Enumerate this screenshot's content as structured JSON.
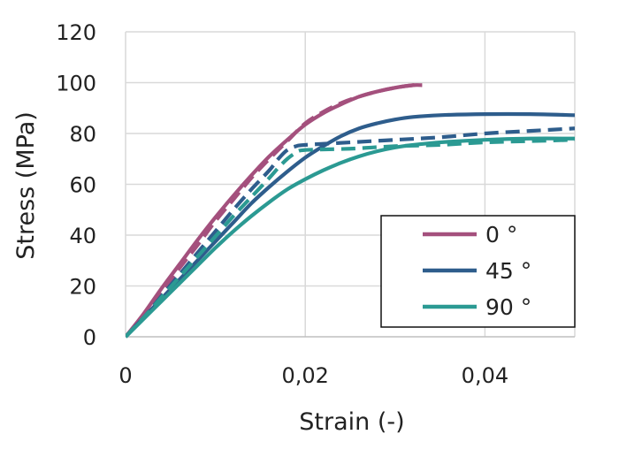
{
  "chart_data": {
    "type": "line",
    "title": "",
    "xlabel": "Strain (-)",
    "ylabel": "Stress (MPa)",
    "xlim": [
      0,
      0.05
    ],
    "ylim": [
      0,
      120
    ],
    "x_ticks": [
      0,
      0.02,
      0.04
    ],
    "x_tick_labels": [
      "0",
      "0,02",
      "0,04"
    ],
    "y_ticks": [
      0,
      20,
      40,
      60,
      80,
      100,
      120
    ],
    "y_tick_labels": [
      "0",
      "20",
      "40",
      "60",
      "80",
      "100",
      "120"
    ],
    "grid": true,
    "legend_position": "lower-right",
    "legend": [
      "0 °",
      "45 °",
      "90 °"
    ],
    "series": [
      {
        "name": "0 °",
        "line_style": "solid",
        "color": "#A4507D",
        "points": [
          [
            0,
            0
          ],
          [
            0.002,
            9
          ],
          [
            0.004,
            19
          ],
          [
            0.006,
            28.5
          ],
          [
            0.008,
            38
          ],
          [
            0.01,
            47
          ],
          [
            0.012,
            55.5
          ],
          [
            0.014,
            63.5
          ],
          [
            0.016,
            71
          ],
          [
            0.018,
            77.5
          ],
          [
            0.02,
            83.5
          ],
          [
            0.022,
            88
          ],
          [
            0.024,
            91.5
          ],
          [
            0.026,
            94.5
          ],
          [
            0.028,
            96.5
          ],
          [
            0.03,
            98
          ],
          [
            0.032,
            99
          ],
          [
            0.033,
            99
          ]
        ]
      },
      {
        "name": "0 °",
        "line_style": "dashed",
        "color": "#A4507D",
        "points": [
          [
            0,
            0
          ],
          [
            0.002,
            8.5
          ],
          [
            0.004,
            17.5
          ],
          [
            0.006,
            27
          ],
          [
            0.008,
            36
          ],
          [
            0.01,
            45.5
          ],
          [
            0.012,
            54
          ],
          [
            0.014,
            62.5
          ],
          [
            0.016,
            70
          ],
          [
            0.018,
            77
          ],
          [
            0.02,
            84
          ],
          [
            0.022,
            88.5
          ],
          [
            0.024,
            92
          ],
          [
            0.026,
            94.5
          ],
          [
            0.028,
            96.5
          ],
          [
            0.03,
            98
          ],
          [
            0.032,
            99
          ],
          [
            0.033,
            99
          ]
        ]
      },
      {
        "name": "45 °",
        "line_style": "solid",
        "color": "#2E5D8C",
        "points": [
          [
            0,
            0
          ],
          [
            0.002,
            7.5
          ],
          [
            0.004,
            15
          ],
          [
            0.006,
            22.5
          ],
          [
            0.008,
            30
          ],
          [
            0.01,
            37.5
          ],
          [
            0.012,
            45
          ],
          [
            0.014,
            52.5
          ],
          [
            0.016,
            59
          ],
          [
            0.018,
            65
          ],
          [
            0.02,
            70.5
          ],
          [
            0.022,
            75
          ],
          [
            0.024,
            79
          ],
          [
            0.026,
            82
          ],
          [
            0.028,
            84
          ],
          [
            0.03,
            85.5
          ],
          [
            0.032,
            86.5
          ],
          [
            0.035,
            87.2
          ],
          [
            0.04,
            87.6
          ],
          [
            0.045,
            87.6
          ],
          [
            0.05,
            87.2
          ]
        ]
      },
      {
        "name": "45 °",
        "line_style": "dashed",
        "color": "#2E5D8C",
        "points": [
          [
            0,
            0
          ],
          [
            0.002,
            7.5
          ],
          [
            0.004,
            16
          ],
          [
            0.006,
            24.5
          ],
          [
            0.008,
            33
          ],
          [
            0.01,
            41.5
          ],
          [
            0.012,
            50
          ],
          [
            0.014,
            58
          ],
          [
            0.016,
            65.5
          ],
          [
            0.017,
            70
          ],
          [
            0.018,
            73.5
          ],
          [
            0.019,
            75
          ],
          [
            0.02,
            75.5
          ],
          [
            0.025,
            76.5
          ],
          [
            0.03,
            77.5
          ],
          [
            0.035,
            78.5
          ],
          [
            0.04,
            80
          ],
          [
            0.045,
            81
          ],
          [
            0.05,
            82
          ]
        ]
      },
      {
        "name": "90 °",
        "line_style": "solid",
        "color": "#2B9A93",
        "points": [
          [
            0,
            0
          ],
          [
            0.002,
            7
          ],
          [
            0.004,
            14
          ],
          [
            0.006,
            21
          ],
          [
            0.008,
            28
          ],
          [
            0.01,
            35
          ],
          [
            0.012,
            41.5
          ],
          [
            0.014,
            47.5
          ],
          [
            0.016,
            53
          ],
          [
            0.018,
            58
          ],
          [
            0.02,
            62
          ],
          [
            0.022,
            65.5
          ],
          [
            0.024,
            68.5
          ],
          [
            0.026,
            71
          ],
          [
            0.028,
            73
          ],
          [
            0.03,
            74.5
          ],
          [
            0.032,
            75.5
          ],
          [
            0.035,
            76.5
          ],
          [
            0.04,
            77.5
          ],
          [
            0.045,
            78
          ],
          [
            0.05,
            78
          ]
        ]
      },
      {
        "name": "90 °",
        "line_style": "dashed",
        "color": "#2B9A93",
        "points": [
          [
            0,
            0
          ],
          [
            0.002,
            7.5
          ],
          [
            0.004,
            15.5
          ],
          [
            0.006,
            23.5
          ],
          [
            0.008,
            31.5
          ],
          [
            0.01,
            39.5
          ],
          [
            0.012,
            47.5
          ],
          [
            0.014,
            55
          ],
          [
            0.016,
            62.5
          ],
          [
            0.017,
            66.5
          ],
          [
            0.018,
            70
          ],
          [
            0.019,
            72.5
          ],
          [
            0.02,
            73.5
          ],
          [
            0.025,
            74
          ],
          [
            0.03,
            75
          ],
          [
            0.035,
            75.5
          ],
          [
            0.04,
            76.5
          ],
          [
            0.045,
            77
          ],
          [
            0.05,
            77.5
          ]
        ]
      }
    ]
  }
}
